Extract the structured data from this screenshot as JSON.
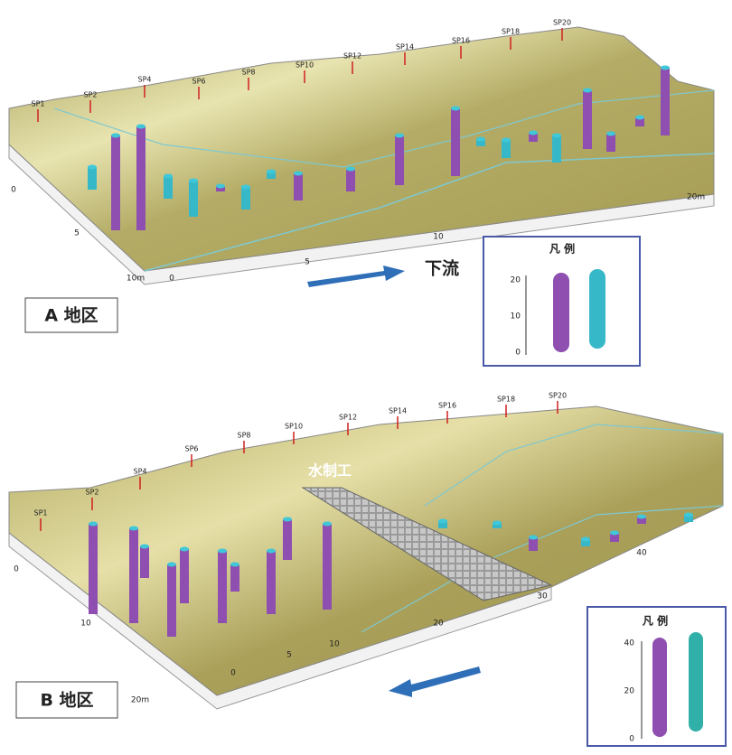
{
  "panel_a": {
    "label": "A 地区",
    "flow_label": "下流",
    "stations": [
      "SP1",
      "SP2",
      "SP4",
      "SP6",
      "SP8",
      "SP10",
      "SP12",
      "SP14",
      "SP16",
      "SP18",
      "SP20"
    ],
    "axis_labels": [
      "0",
      "5",
      "10m",
      "0",
      "5",
      "10",
      "20m"
    ],
    "legend": {
      "title": "凡 例",
      "ticks": [
        "20",
        "10",
        "0"
      ]
    }
  },
  "panel_b": {
    "label": "B 地区",
    "structure_label": "水制工",
    "stations": [
      "SP1",
      "SP2",
      "SP4",
      "SP6",
      "SP8",
      "SP10",
      "SP12",
      "SP14",
      "SP16",
      "SP18",
      "SP20"
    ],
    "axis_labels": [
      "0",
      "10",
      "20m",
      "0",
      "5",
      "10",
      "20",
      "30",
      "40"
    ],
    "legend": {
      "title": "凡 例",
      "ticks": [
        "40",
        "20",
        "0"
      ]
    }
  }
}
